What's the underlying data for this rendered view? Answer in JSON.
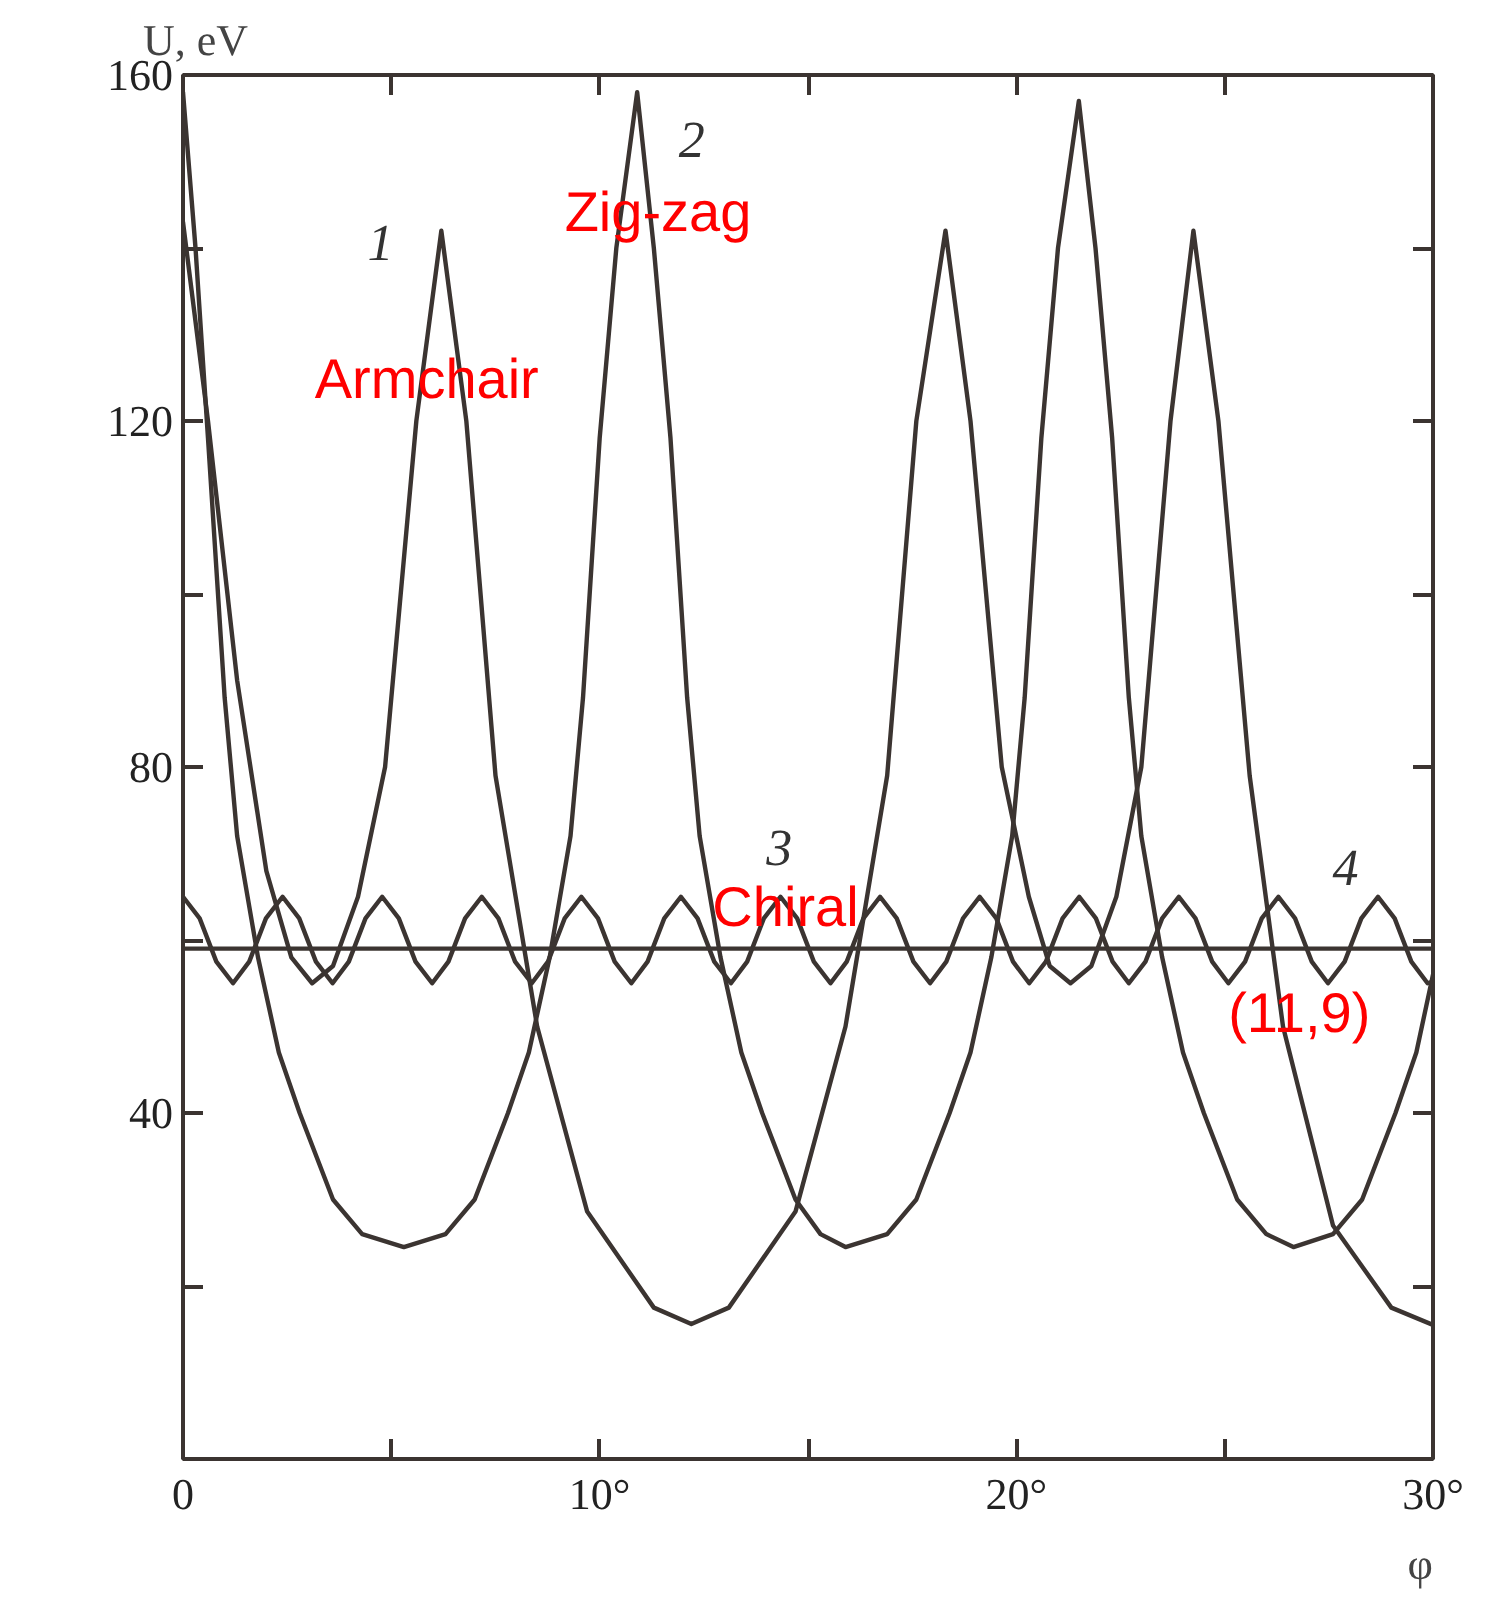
{
  "chart_data": {
    "type": "line",
    "xlabel": "φ",
    "ylabel": "U, eV",
    "xlim": [
      0,
      30
    ],
    "ylim": [
      0,
      160
    ],
    "xticks": [
      0,
      {
        "value": 5,
        "label": null
      },
      {
        "value": 10,
        "label": "10°"
      },
      {
        "value": 15,
        "label": null
      },
      {
        "value": 20,
        "label": "20°"
      },
      {
        "value": 25,
        "label": null
      },
      {
        "value": 30,
        "label": "30°"
      }
    ],
    "yticks": [
      {
        "value": 20,
        "label": null
      },
      40,
      {
        "value": 60,
        "label": null
      },
      80,
      {
        "value": 100,
        "label": null
      },
      120,
      {
        "value": 140,
        "label": null
      },
      160
    ],
    "grid": false,
    "marker": "none",
    "line_style": "solid",
    "series": [
      {
        "color": "#3b3431",
        "x": [
          0,
          0.6,
          1.3,
          2.0,
          2.6,
          3.1,
          3.6,
          4.2,
          4.85,
          5.6,
          6.2,
          6.8,
          7.5,
          8.5,
          9.7,
          11.3,
          12.2,
          13.1,
          14.7,
          15.9,
          16.9,
          17.6,
          18.3,
          18.9,
          19.65,
          20.3,
          20.8,
          21.3,
          21.8,
          22.4,
          23.0,
          23.7,
          24.25,
          24.85,
          25.6,
          26.4,
          27.6,
          29.0,
          30
        ],
        "values": [
          143,
          120,
          90,
          68,
          58,
          55,
          57,
          65,
          80,
          120,
          142,
          120,
          79,
          50,
          28.6,
          17.5,
          15.6,
          17.5,
          28.6,
          50,
          79,
          120,
          142,
          120,
          80,
          65,
          57,
          55,
          57,
          65,
          80,
          120,
          142,
          120,
          79,
          50,
          27,
          17.5,
          15.5
        ]
      },
      {
        "color": "#3b3431",
        "x": [
          0,
          0.3,
          0.6,
          1.0,
          1.3,
          1.8,
          2.3,
          2.8,
          3.6,
          4.3,
          5.3,
          6.3,
          7.0,
          7.8,
          8.3,
          8.8,
          9.3,
          9.6,
          10.0,
          10.4,
          10.9,
          11.3,
          11.7,
          12.1,
          12.4,
          12.9,
          13.4,
          13.9,
          14.7,
          15.3,
          15.9,
          16.9,
          17.6,
          18.4,
          18.9,
          19.4,
          19.9,
          20.2,
          20.6,
          21.0,
          21.5,
          21.9,
          22.3,
          22.7,
          23.0,
          23.5,
          24.0,
          24.5,
          25.3,
          26.0,
          26.65,
          27.6,
          28.3,
          29.1,
          29.6,
          30
        ],
        "values": [
          158,
          140,
          118,
          88,
          72,
          58,
          47,
          40,
          30,
          26,
          24.5,
          26,
          30,
          40,
          47,
          58,
          72,
          88,
          118,
          140,
          158,
          140,
          118,
          88,
          72,
          58,
          47,
          40,
          30,
          26,
          24.5,
          26,
          30,
          40,
          47,
          58,
          72,
          88,
          118,
          140,
          157,
          140,
          118,
          88,
          72,
          58,
          47,
          40,
          30,
          26,
          24.5,
          26,
          30,
          40,
          47,
          56
        ]
      },
      {
        "color": "#3b3431",
        "x": [
          0,
          0.4,
          0.8,
          1.2,
          1.59,
          1.99,
          2.39,
          2.79,
          3.19,
          3.59,
          3.98,
          4.38,
          4.78,
          5.18,
          5.58,
          5.98,
          6.37,
          6.77,
          7.17,
          7.57,
          7.97,
          8.37,
          8.76,
          9.16,
          9.56,
          9.96,
          10.36,
          10.76,
          11.15,
          11.55,
          11.95,
          12.35,
          12.75,
          13.15,
          13.54,
          13.94,
          14.34,
          14.74,
          15.14,
          15.54,
          15.93,
          16.33,
          16.73,
          17.13,
          17.53,
          17.93,
          18.32,
          18.72,
          19.12,
          19.52,
          19.92,
          20.31,
          20.71,
          21.11,
          21.51,
          21.91,
          22.31,
          22.7,
          23.1,
          23.5,
          23.9,
          24.3,
          24.7,
          25.09,
          25.49,
          25.89,
          26.29,
          26.69,
          27.09,
          27.48,
          27.88,
          28.28,
          28.68,
          29.08,
          29.48,
          29.87,
          30
        ],
        "values": [
          65,
          62.5,
          57.5,
          55,
          57.5,
          62.5,
          65,
          62.5,
          57.5,
          55,
          57.5,
          62.5,
          65,
          62.5,
          57.5,
          55,
          57.5,
          62.5,
          65,
          62.5,
          57.5,
          55,
          57.5,
          62.5,
          65,
          62.5,
          57.5,
          55,
          57.5,
          62.5,
          65,
          62.5,
          57.5,
          55,
          57.5,
          62.5,
          65,
          62.5,
          57.5,
          55,
          57.5,
          62.5,
          65,
          62.5,
          57.5,
          55,
          57.5,
          62.5,
          65,
          62.5,
          57.5,
          55,
          57.5,
          62.5,
          65,
          62.5,
          57.5,
          55,
          57.5,
          62.5,
          65,
          62.5,
          57.5,
          55,
          57.5,
          62.5,
          65,
          62.5,
          57.5,
          55,
          57.5,
          62.5,
          65,
          62.5,
          57.5,
          55,
          55.2
        ]
      },
      {
        "color": "#3b3431",
        "x": [
          0,
          30
        ],
        "values": [
          59,
          59
        ]
      }
    ],
    "annotations": [
      "1",
      "Armchair",
      "2",
      "Zig-zag",
      "3",
      "Chiral",
      "4",
      "(11,9)"
    ]
  }
}
